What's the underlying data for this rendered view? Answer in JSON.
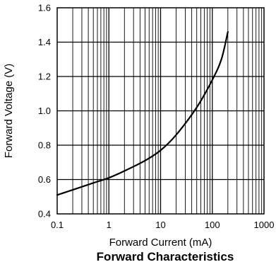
{
  "chart_data": {
    "type": "line",
    "title": "Forward Characteristics",
    "xlabel": "Forward Current (mA)",
    "ylabel": "Forward Voltage (V)",
    "x_scale": "log",
    "xlim": [
      0.1,
      1000
    ],
    "ylim": [
      0.4,
      1.6
    ],
    "x_tick_labels": [
      "0.1",
      "1",
      "10",
      "100",
      "1000"
    ],
    "y_tick_labels": [
      "0.4",
      "0.6",
      "0.8",
      "1.0",
      "1.2",
      "1.4",
      "1.6"
    ],
    "grid": true,
    "series": [
      {
        "x": [
          0.1,
          0.2,
          0.5,
          1,
          2,
          5,
          10,
          20,
          50,
          100,
          150,
          200
        ],
        "y": [
          0.51,
          0.54,
          0.58,
          0.61,
          0.65,
          0.71,
          0.77,
          0.86,
          1.02,
          1.18,
          1.3,
          1.46
        ]
      }
    ],
    "colors": {
      "line": "#000000",
      "grid": "#000000",
      "background": "#ffffff"
    }
  }
}
